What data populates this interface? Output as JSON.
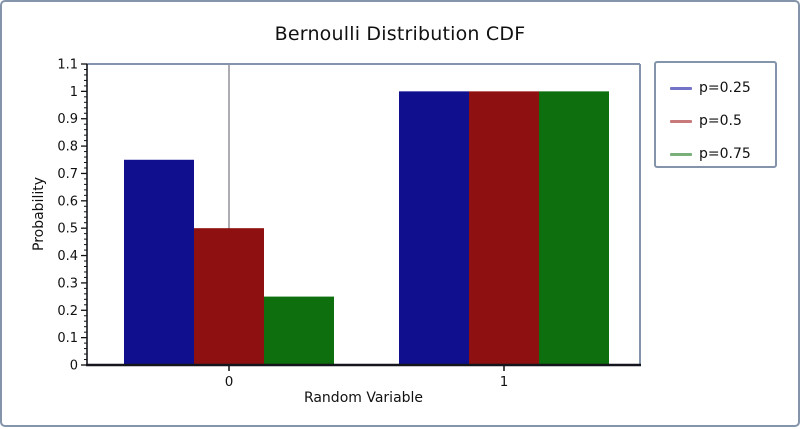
{
  "window": {
    "background": "#FFFFFF",
    "frame_border_color": "#8494AB",
    "axis_color": "#15151E",
    "top_right_spine_color": "#8494AB",
    "zero_line_color": "#5A5A64",
    "text_color": "#111111"
  },
  "chart_data": {
    "type": "bar",
    "title": "Bernoulli Distribution CDF",
    "xlabel": "Random Variable",
    "ylabel": "Probability",
    "categories": [
      "0",
      "1"
    ],
    "series": [
      {
        "name": "p=0.25",
        "values": [
          0.75,
          1
        ],
        "bar_color": "#10108F",
        "legend_color": "#7373C8"
      },
      {
        "name": "p=0.5",
        "values": [
          0.5,
          1
        ],
        "bar_color": "#8F1010",
        "legend_color": "#C87A7A"
      },
      {
        "name": "p=0.75",
        "values": [
          0.25,
          1
        ],
        "bar_color": "#0E6F0E",
        "legend_color": "#79AF79"
      }
    ],
    "ylim": [
      0,
      1.1
    ],
    "ytick_step": 0.1,
    "y_minor_tick_step": 0.02,
    "grid": "off",
    "legend_position": "right",
    "zero_line_at_category": "0"
  }
}
